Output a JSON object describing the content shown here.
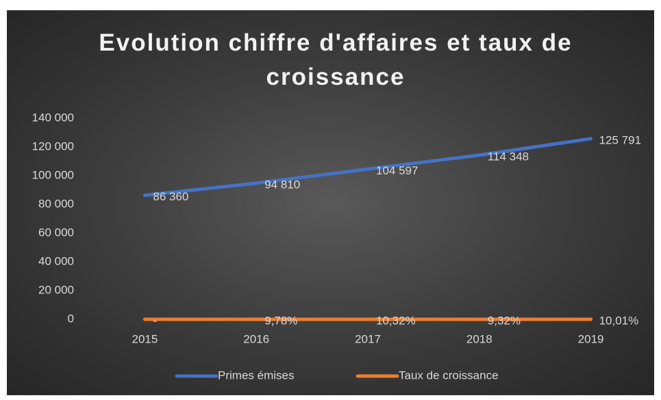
{
  "chart_data": {
    "type": "line",
    "title": "Evolution chiffre d'affaires et taux de croissance",
    "categories": [
      "2015",
      "2016",
      "2017",
      "2018",
      "2019"
    ],
    "series": [
      {
        "name": "Primes émises",
        "color": "#4472c4",
        "values": [
          86360,
          94810,
          104597,
          114348,
          125791
        ],
        "value_labels": [
          "86 360",
          "94 810",
          "104 597",
          "114 348",
          "125 791"
        ]
      },
      {
        "name": "Taux de croissance",
        "color": "#ed7d31",
        "values": [
          0,
          0.0978,
          0.1032,
          0.0932,
          0.1001
        ],
        "value_labels": [
          "-",
          "9,78%",
          "10,32%",
          "9,32%",
          "10,01%"
        ]
      }
    ],
    "ylim": [
      0,
      140000
    ],
    "yticks": [
      0,
      {
        "value": 20000,
        "label": "20 000"
      },
      {
        "value": 40000,
        "label": "40 000"
      },
      {
        "value": 60000,
        "label": "60 000"
      },
      {
        "value": 80000,
        "label": "80 000"
      },
      {
        "value": 100000,
        "label": "100 000"
      },
      {
        "value": 120000,
        "label": "120 000"
      },
      {
        "value": 140000,
        "label": "140 000"
      }
    ],
    "legend": "bottom"
  }
}
